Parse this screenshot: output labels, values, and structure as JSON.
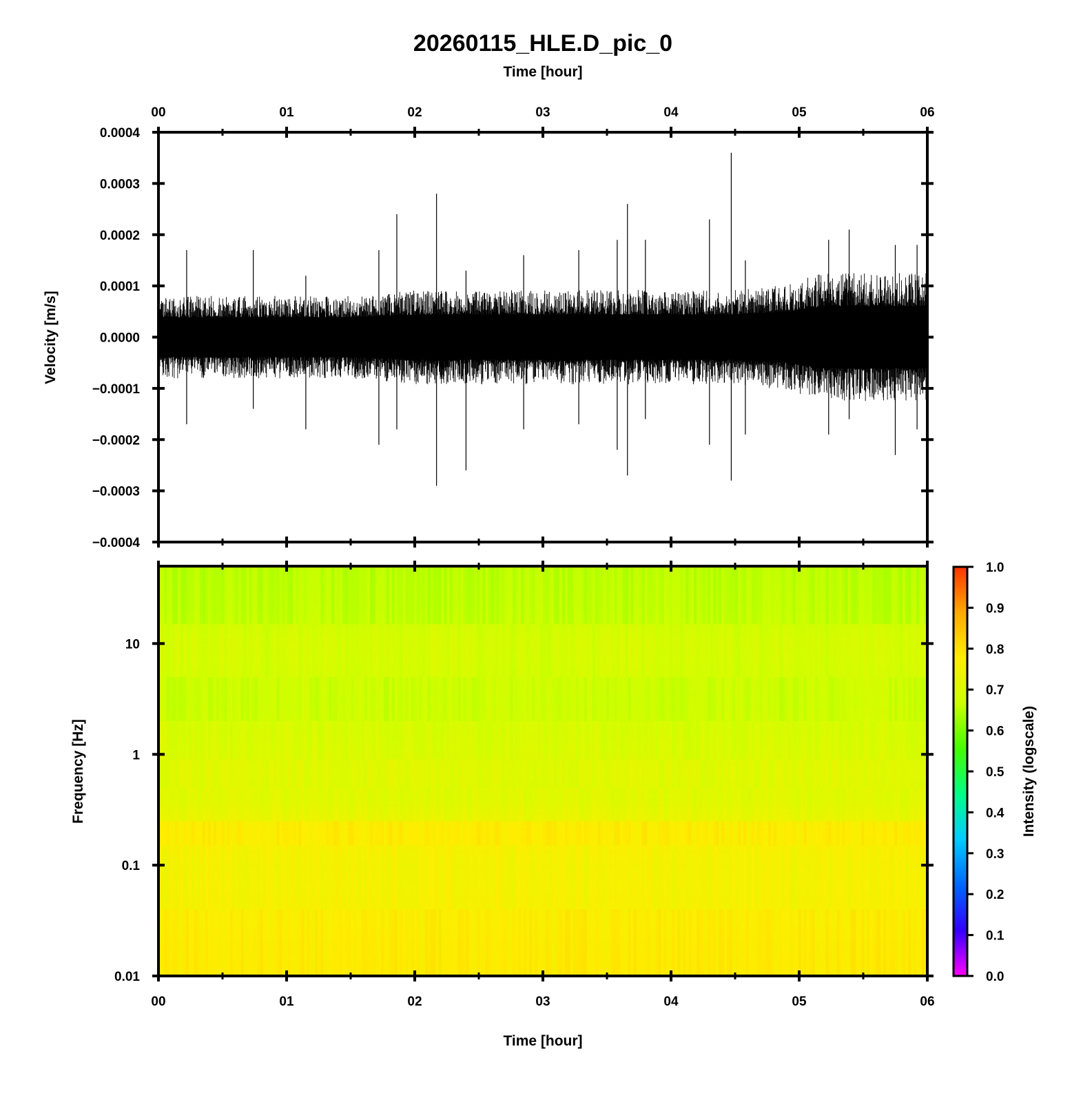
{
  "chart_data": [
    {
      "type": "line",
      "title": "20260115_HLE.D_pic_0",
      "top_xlabel": "Time [hour]",
      "ylabel": "Velocity [m/s]",
      "x_ticks": [
        "00",
        "01",
        "02",
        "03",
        "04",
        "05",
        "06"
      ],
      "xlim": [
        0,
        6
      ],
      "ylim": [
        -0.0004,
        0.0004
      ],
      "y_ticks": [
        "0.0004",
        "0.0003",
        "0.0002",
        "0.0001",
        "0.0000",
        "−0.0001",
        "−0.0002",
        "−0.0003",
        "−0.0004"
      ],
      "y_tick_values": [
        0.0004,
        0.0003,
        0.0002,
        0.0001,
        0.0,
        -0.0001,
        -0.0002,
        -0.0003,
        -0.0004
      ],
      "line_color": "#000000",
      "envelope": {
        "x": [
          0,
          0.5,
          1,
          1.5,
          2,
          2.5,
          3,
          3.5,
          4,
          4.5,
          4.9,
          5.2,
          5.5,
          5.8,
          6
        ],
        "upper": [
          7e-05,
          7e-05,
          7e-05,
          7e-05,
          8e-05,
          8e-05,
          8e-05,
          8e-05,
          8e-05,
          8e-05,
          9e-05,
          0.00011,
          0.00011,
          0.00011,
          0.00011
        ],
        "lower": [
          -7e-05,
          -7e-05,
          -7e-05,
          -7e-05,
          -8e-05,
          -8e-05,
          -8e-05,
          -8e-05,
          -8e-05,
          -8e-05,
          -9e-05,
          -0.00011,
          -0.00011,
          -0.00011,
          -0.00011
        ]
      },
      "spikes": [
        {
          "x": 0.22,
          "max": 0.00017,
          "min": -0.00017
        },
        {
          "x": 0.74,
          "max": 0.00017,
          "min": -0.00014
        },
        {
          "x": 1.15,
          "max": 0.00012,
          "min": -0.00018
        },
        {
          "x": 1.72,
          "max": 0.00017,
          "min": -0.00021
        },
        {
          "x": 1.86,
          "max": 0.00024,
          "min": -0.00018
        },
        {
          "x": 2.17,
          "max": 0.00028,
          "min": -0.00029
        },
        {
          "x": 2.4,
          "max": 0.00013,
          "min": -0.00026
        },
        {
          "x": 2.85,
          "max": 0.00016,
          "min": -0.00018
        },
        {
          "x": 3.28,
          "max": 0.00017,
          "min": -0.00017
        },
        {
          "x": 3.58,
          "max": 0.00019,
          "min": -0.00022
        },
        {
          "x": 3.66,
          "max": 0.00026,
          "min": -0.00027
        },
        {
          "x": 3.8,
          "max": 0.00019,
          "min": -0.00016
        },
        {
          "x": 4.3,
          "max": 0.00023,
          "min": -0.00021
        },
        {
          "x": 4.47,
          "max": 0.00036,
          "min": -0.00028
        },
        {
          "x": 4.58,
          "max": 0.00015,
          "min": -0.00019
        },
        {
          "x": 5.23,
          "max": 0.00019,
          "min": -0.00019
        },
        {
          "x": 5.39,
          "max": 0.00021,
          "min": -0.00016
        },
        {
          "x": 5.75,
          "max": 0.00018,
          "min": -0.00023
        },
        {
          "x": 5.92,
          "max": 0.00018,
          "min": -0.00018
        }
      ]
    },
    {
      "type": "heatmap",
      "xlabel": "Time [hour]",
      "ylabel": "Frequency [Hz]",
      "x_ticks": [
        "00",
        "01",
        "02",
        "03",
        "04",
        "05",
        "06"
      ],
      "xlim": [
        0,
        6
      ],
      "y_scale": "log",
      "ylim": [
        0.01,
        50
      ],
      "y_ticks": [
        "10",
        "1",
        "0.1",
        "0.01"
      ],
      "y_tick_values": [
        10,
        1,
        0.1,
        0.01
      ],
      "intensity_profile": {
        "frequency": [
          0.01,
          0.03,
          0.1,
          0.2,
          0.4,
          0.7,
          1.5,
          3,
          10,
          20,
          50
        ],
        "intensity": [
          0.79,
          0.77,
          0.75,
          0.78,
          0.7,
          0.71,
          0.69,
          0.67,
          0.69,
          0.66,
          0.65
        ]
      },
      "colorbar": {
        "label": "Intensity (logscale)",
        "range": [
          0.0,
          1.0
        ],
        "ticks": [
          "1.0",
          "0.9",
          "0.8",
          "0.7",
          "0.6",
          "0.5",
          "0.4",
          "0.3",
          "0.2",
          "0.1",
          "0.0"
        ],
        "tick_values": [
          1.0,
          0.9,
          0.8,
          0.7,
          0.6,
          0.5,
          0.4,
          0.3,
          0.2,
          0.1,
          0.0
        ],
        "colors": [
          "#ff00ff",
          "#3300ff",
          "#0066ff",
          "#00ccff",
          "#00ff88",
          "#44ff00",
          "#ccff00",
          "#ffee00",
          "#ffaa00",
          "#ff3300"
        ]
      }
    }
  ]
}
